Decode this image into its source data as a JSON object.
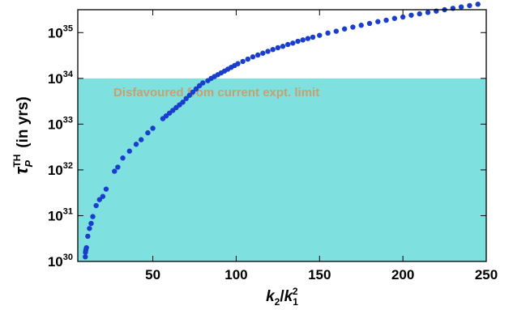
{
  "chart_data": {
    "type": "scatter",
    "xlabel": {
      "base": "k",
      "sub2": "2",
      "slash": "/",
      "sub1": "1",
      "sup": "2"
    },
    "ylabel": {
      "tau": "τ",
      "sup": "TH",
      "sub": "P",
      "rest": " (in yrs)"
    },
    "xlim": [
      5,
      250
    ],
    "ylim_log10": [
      30,
      35.5
    ],
    "xticks": [
      50,
      100,
      150,
      200,
      250
    ],
    "yticks": [
      {
        "base": "10",
        "exp": "30",
        "value": 30
      },
      {
        "base": "10",
        "exp": "31",
        "value": 31
      },
      {
        "base": "10",
        "exp": "32",
        "value": 32
      },
      {
        "base": "10",
        "exp": "33",
        "value": 33
      },
      {
        "base": "10",
        "exp": "34",
        "value": 34
      },
      {
        "base": "10",
        "exp": "35",
        "value": 35
      }
    ],
    "region": {
      "label": "Disfavoured from current expt. limit",
      "y_upper_log10": 34,
      "fill": "#7fe0e0",
      "label_color": "#c8a070"
    },
    "point_color": "#1a3ecc",
    "x": [
      9.5,
      9.6,
      9.8,
      10.2,
      11,
      12,
      13,
      14,
      16,
      18,
      20,
      22,
      27,
      29,
      32,
      36,
      40,
      43,
      47,
      50,
      56,
      58,
      60,
      62,
      64,
      66,
      68,
      70,
      72,
      74,
      76,
      78,
      80,
      83,
      85,
      87,
      89,
      91,
      93,
      95,
      97,
      99,
      101,
      104,
      107,
      110,
      113,
      116,
      119,
      122,
      125,
      128,
      131,
      134,
      137,
      140,
      143,
      146,
      150,
      155,
      160,
      165,
      170,
      175,
      180,
      185,
      190,
      195,
      200,
      205,
      210,
      215,
      220,
      225,
      230,
      235,
      240,
      245
    ],
    "y_log10": [
      30.1,
      30.2,
      30.25,
      30.3,
      30.55,
      30.72,
      30.83,
      30.98,
      31.22,
      31.35,
      31.42,
      31.58,
      31.97,
      32.06,
      32.26,
      32.41,
      32.56,
      32.66,
      32.81,
      32.91,
      33.12,
      33.18,
      33.24,
      33.3,
      33.36,
      33.42,
      33.48,
      33.56,
      33.63,
      33.7,
      33.77,
      33.84,
      33.9,
      33.95,
      34.0,
      34.04,
      34.08,
      34.12,
      34.16,
      34.2,
      34.24,
      34.28,
      34.32,
      34.37,
      34.42,
      34.47,
      34.51,
      34.55,
      34.59,
      34.63,
      34.67,
      34.7,
      34.74,
      34.77,
      34.81,
      34.84,
      34.87,
      34.9,
      34.94,
      34.99,
      35.03,
      35.08,
      35.12,
      35.16,
      35.2,
      35.24,
      35.27,
      35.31,
      35.34,
      35.38,
      35.41,
      35.44,
      35.47,
      35.5,
      35.53,
      35.56,
      35.59,
      35.62
    ]
  }
}
